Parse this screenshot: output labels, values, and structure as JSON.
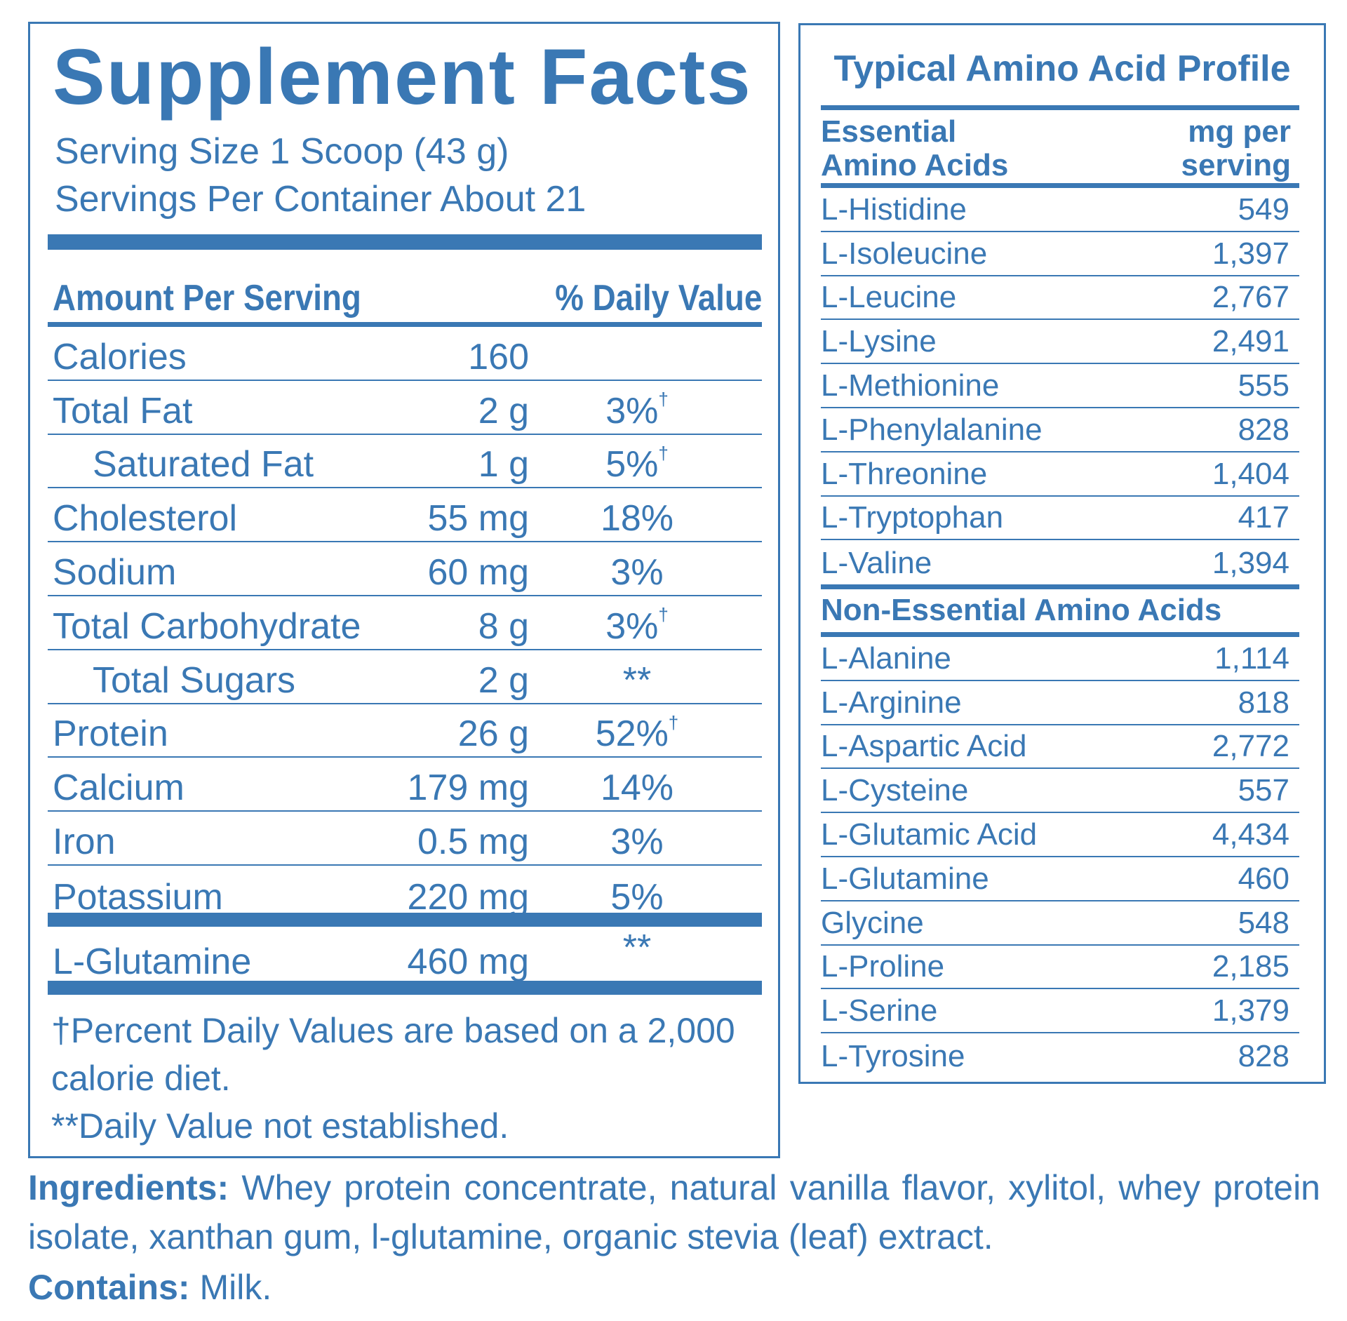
{
  "facts": {
    "title": "Supplement Facts",
    "serving_size": "Serving Size 1 Scoop (43 g)",
    "servings_per_container": "Servings Per Container About 21",
    "header_amount": "Amount Per Serving",
    "header_dv": "% Daily Value",
    "rows": [
      {
        "name": "Calories",
        "amount": "160",
        "dv": "",
        "dagger": ""
      },
      {
        "name": "Total Fat",
        "amount": "2 g",
        "dv": "3%",
        "dagger": "†"
      },
      {
        "name": "Saturated Fat",
        "amount": "1 g",
        "dv": "5%",
        "dagger": "†"
      },
      {
        "name": "Cholesterol",
        "amount": "55 mg",
        "dv": "18%",
        "dagger": ""
      },
      {
        "name": "Sodium",
        "amount": "60 mg",
        "dv": "3%",
        "dagger": ""
      },
      {
        "name": "Total Carbohydrate",
        "amount": "8 g",
        "dv": "3%",
        "dagger": "†"
      },
      {
        "name": "Total Sugars",
        "amount": "2 g",
        "dv": "**",
        "dagger": ""
      },
      {
        "name": "Protein",
        "amount": "26 g",
        "dv": "52%",
        "dagger": "†"
      },
      {
        "name": "Calcium",
        "amount": "179 mg",
        "dv": "14%",
        "dagger": ""
      },
      {
        "name": "Iron",
        "amount": "0.5 mg",
        "dv": "3%",
        "dagger": ""
      },
      {
        "name": "Potassium",
        "amount": "220 mg",
        "dv": "5%",
        "dagger": ""
      }
    ],
    "glutamine": {
      "name": "L-Glutamine",
      "amount": "460 mg",
      "dv": "**"
    },
    "footnote_1a": "†Percent Daily Values are based on a 2,000",
    "footnote_1b": "calorie diet.",
    "footnote_2": "**Daily Value not established."
  },
  "amino": {
    "title": "Typical Amino Acid Profile",
    "col_left_1": "Essential",
    "col_left_2": "Amino Acids",
    "col_right_1": "mg per",
    "col_right_2": "serving",
    "essential": [
      {
        "name": "L-Histidine",
        "value": "549"
      },
      {
        "name": "L-Isoleucine",
        "value": "1,397"
      },
      {
        "name": "L-Leucine",
        "value": "2,767"
      },
      {
        "name": "L-Lysine",
        "value": "2,491"
      },
      {
        "name": "L-Methionine",
        "value": "555"
      },
      {
        "name": "L-Phenylalanine",
        "value": "828"
      },
      {
        "name": "L-Threonine",
        "value": "1,404"
      },
      {
        "name": "L-Tryptophan",
        "value": "417"
      },
      {
        "name": "L-Valine",
        "value": "1,394"
      }
    ],
    "nonessential_title": "Non-Essential Amino Acids",
    "nonessential": [
      {
        "name": "L-Alanine",
        "value": "1,114"
      },
      {
        "name": "L-Arginine",
        "value": "818"
      },
      {
        "name": "L-Aspartic Acid",
        "value": "2,772"
      },
      {
        "name": "L-Cysteine",
        "value": "557"
      },
      {
        "name": "L-Glutamic Acid",
        "value": "4,434"
      },
      {
        "name": "L-Glutamine",
        "value": "460"
      },
      {
        "name": "Glycine",
        "value": "548"
      },
      {
        "name": "L-Proline",
        "value": "2,185"
      },
      {
        "name": "L-Serine",
        "value": "1,379"
      },
      {
        "name": "L-Tyrosine",
        "value": "828"
      }
    ]
  },
  "ingredients": {
    "label": "Ingredients:",
    "line1": "Whey protein concentrate, natural vanilla flavor, xylitol, whey protein",
    "line2": "isolate, xanthan gum, l-glutamine, organic stevia (leaf) extract."
  },
  "contains": {
    "label": "Contains:",
    "text": "Milk."
  }
}
